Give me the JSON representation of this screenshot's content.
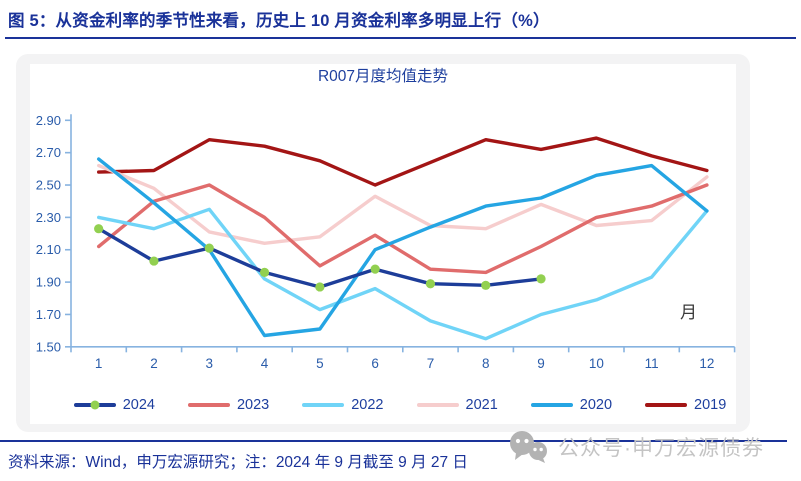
{
  "figure": {
    "title": "图 5：从资金利率的季节性来看，历史上 10 月资金利率多明显上行（%）",
    "source_note": "资料来源：Wind，申万宏源研究；注：2024 年 9 月截至 9 月 27 日",
    "watermark_text": "公众号·申万宏源债券"
  },
  "chart_data": {
    "type": "line",
    "title": "R007月度均值走势",
    "xlabel": "月",
    "ylabel": "",
    "x": [
      1,
      2,
      3,
      4,
      5,
      6,
      7,
      8,
      9,
      10,
      11,
      12
    ],
    "ylim": [
      1.5,
      2.9
    ],
    "yticks": [
      "1.50",
      "1.70",
      "1.90",
      "2.10",
      "2.30",
      "2.50",
      "2.70",
      "2.90"
    ],
    "grid": false,
    "legend_position": "bottom",
    "draw_order": [
      "2019",
      "2021",
      "2023",
      "2022",
      "2020",
      "2024"
    ],
    "series": [
      {
        "name": "2024",
        "color": "#1d3d99",
        "marker": "circle",
        "marker_color": "#92d050",
        "values": [
          2.23,
          2.03,
          2.11,
          1.96,
          1.87,
          1.98,
          1.89,
          1.88,
          1.92
        ]
      },
      {
        "name": "2023",
        "color": "#e06c6c",
        "marker": "none",
        "values": [
          2.12,
          2.4,
          2.5,
          2.3,
          2.0,
          2.19,
          1.98,
          1.96,
          2.12,
          2.3,
          2.37,
          2.5
        ]
      },
      {
        "name": "2022",
        "color": "#70d4f7",
        "marker": "none",
        "values": [
          2.3,
          2.23,
          2.35,
          1.92,
          1.73,
          1.86,
          1.66,
          1.55,
          1.7,
          1.79,
          1.93,
          2.34
        ]
      },
      {
        "name": "2021",
        "color": "#f6cdcd",
        "marker": "none",
        "values": [
          2.62,
          2.48,
          2.21,
          2.14,
          2.18,
          2.43,
          2.25,
          2.23,
          2.38,
          2.25,
          2.28,
          2.55
        ]
      },
      {
        "name": "2020",
        "color": "#25a5e3",
        "marker": "none",
        "values": [
          2.66,
          2.39,
          2.1,
          1.57,
          1.61,
          2.1,
          2.24,
          2.37,
          2.42,
          2.56,
          2.62,
          2.34
        ]
      },
      {
        "name": "2019",
        "color": "#a31515",
        "marker": "none",
        "values": [
          2.58,
          2.59,
          2.78,
          2.74,
          2.65,
          2.5,
          2.64,
          2.78,
          2.72,
          2.79,
          2.68,
          2.59
        ]
      }
    ]
  },
  "colors": {
    "navy": "#1a3299",
    "axis-blue": "#87b3e0",
    "label-blue": "#2a5caa",
    "watermark-gray": "#c4c4c4"
  }
}
